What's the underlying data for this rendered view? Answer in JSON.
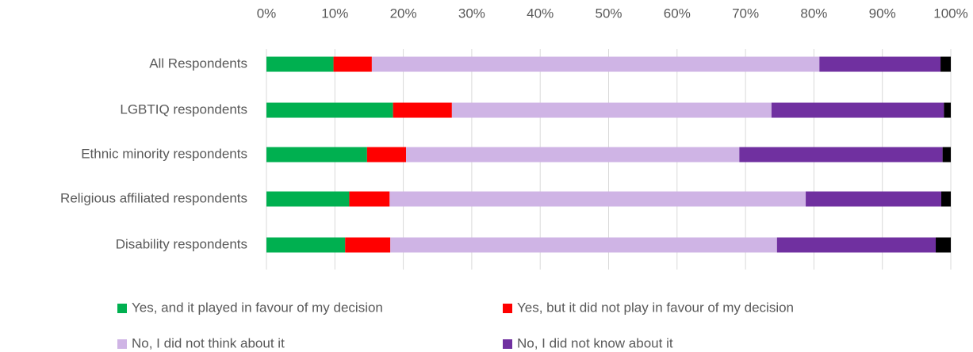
{
  "chart_data": {
    "type": "bar",
    "orientation": "horizontal",
    "stacked": true,
    "categories": [
      "All Respondents",
      "LGBTIQ respondents",
      "Ethnic minority respondents",
      "Religious affiliated respondents",
      "Disability respondents"
    ],
    "series": [
      {
        "name": "Yes, and it played in favour of my decision",
        "color": "#00b050",
        "values": [
          9.8,
          18.5,
          14.7,
          12.1,
          11.5
        ]
      },
      {
        "name": "Yes, but it did not play in favour of my decision",
        "color": "#ff0000",
        "values": [
          5.6,
          8.6,
          5.7,
          5.9,
          6.6
        ]
      },
      {
        "name": "No, I did not think about it",
        "color": "#cfb4e5",
        "values": [
          65.4,
          46.7,
          48.7,
          60.8,
          56.5
        ]
      },
      {
        "name": "No, I did not know about it",
        "color": "#7030a0",
        "values": [
          17.7,
          25.2,
          29.7,
          19.8,
          23.2
        ]
      },
      {
        "color": "#000000",
        "values": [
          1.5,
          1.0,
          1.2,
          1.4,
          2.2
        ]
      }
    ],
    "xlim": [
      0,
      100
    ],
    "xticks": [
      {
        "value": 0,
        "label": "0%"
      },
      {
        "value": 10,
        "label": "10%"
      },
      {
        "value": 20,
        "label": "20%"
      },
      {
        "value": 30,
        "label": "30%"
      },
      {
        "value": 40,
        "label": "40%"
      },
      {
        "value": 50,
        "label": "50%"
      },
      {
        "value": 60,
        "label": "60%"
      },
      {
        "value": 70,
        "label": "70%"
      },
      {
        "value": 80,
        "label": "80%"
      },
      {
        "value": 90,
        "label": "90%"
      },
      {
        "value": 100,
        "label": "100%"
      }
    ],
    "grid": true,
    "legend": "bottom"
  }
}
